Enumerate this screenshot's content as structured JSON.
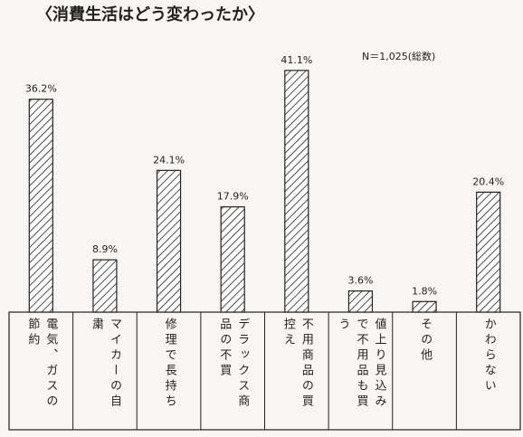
{
  "chart_data": {
    "type": "bar",
    "title": "〈消費生活はどう変わったか〉",
    "note": "N＝1,025(総数)",
    "categories": [
      "電気、ガスの節約",
      "マイカーの自粛",
      "修理で長持ち",
      "デラックス商品の不買",
      "不用商品の買控え",
      "値上り見込みで不用品も買う",
      "その他",
      "かわらない"
    ],
    "values": [
      36.2,
      8.9,
      24.1,
      17.9,
      41.1,
      3.6,
      1.8,
      20.4
    ],
    "value_labels": [
      "36.2%",
      "8.9%",
      "24.1%",
      "17.9%",
      "41.1%",
      "3.6%",
      "1.8%",
      "20.4%"
    ],
    "color": "hatched"
  }
}
